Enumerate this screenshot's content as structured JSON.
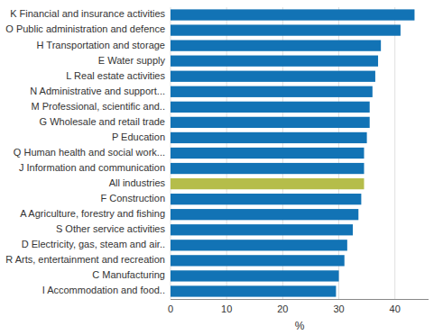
{
  "chart_data": {
    "type": "bar",
    "orientation": "horizontal",
    "categories": [
      "I Accommodation and food..",
      "C Manufacturing",
      "R Arts, entertainment and recreation",
      "D Electricity, gas, steam and air..",
      "S Other service activities",
      "A Agriculture, forestry  and fishing",
      "F Construction",
      "All industries",
      "J Information and communication",
      "Q Human health and social work...",
      "P Education",
      "G Wholesale and retail trade",
      "M Professional, scientific and..",
      "N Administrative and support...",
      "L Real estate activities",
      "E Water supply",
      "H Transportation and storage",
      "O Public administration and defence",
      "K Financial and insurance activities"
    ],
    "values": [
      29.5,
      30.0,
      31.0,
      31.5,
      32.5,
      33.5,
      34.0,
      34.5,
      34.5,
      34.5,
      35.0,
      35.5,
      35.5,
      36.0,
      36.5,
      37.0,
      37.5,
      41.0,
      43.5
    ],
    "colors": [
      "#1273b5",
      "#1273b5",
      "#1273b5",
      "#1273b5",
      "#1273b5",
      "#1273b5",
      "#1273b5",
      "#b5bd4a",
      "#1273b5",
      "#1273b5",
      "#1273b5",
      "#1273b5",
      "#1273b5",
      "#1273b5",
      "#1273b5",
      "#1273b5",
      "#1273b5",
      "#1273b5",
      "#1273b5"
    ],
    "xlabel": "%",
    "xlim": [
      0,
      46
    ],
    "xticks": [
      0,
      10,
      20,
      30,
      40
    ],
    "grid": true
  }
}
